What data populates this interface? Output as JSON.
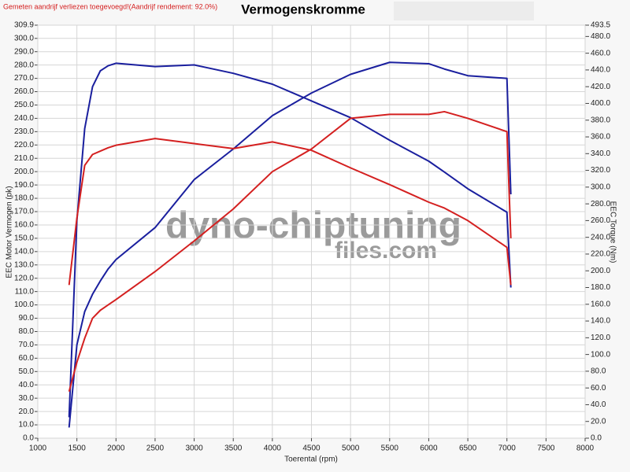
{
  "chart_data": {
    "type": "line",
    "title": "Vermogenskromme",
    "subtitle": "Gemeten aandrijf verliezen toegevoegd!(Aandrijf rendement: 92.0%)",
    "xlabel": "Toerental (rpm)",
    "ylabel": "EEC Motor Vermogen (pk)",
    "y2label": "EEC Torque (Nm)",
    "watermark": [
      "dyno-chiptuning",
      "files.com"
    ],
    "grid": true,
    "xlim": [
      1000,
      8000
    ],
    "xticks": [
      1000,
      1500,
      2000,
      2500,
      3000,
      3500,
      4000,
      4500,
      5000,
      5500,
      6000,
      6500,
      7000,
      7500,
      8000
    ],
    "ylim": [
      0,
      309.9
    ],
    "yticks": [
      {
        "value": 0,
        "label": "0.0"
      },
      {
        "value": 10,
        "label": "10.0"
      },
      {
        "value": 20,
        "label": "20.0"
      },
      {
        "value": 30,
        "label": "30.0"
      },
      {
        "value": 40,
        "label": "40.0"
      },
      {
        "value": 50,
        "label": "50.0"
      },
      {
        "value": 60,
        "label": "60.0"
      },
      {
        "value": 70,
        "label": "70.0"
      },
      {
        "value": 80,
        "label": "80.0"
      },
      {
        "value": 90,
        "label": "90.0"
      },
      {
        "value": 100,
        "label": "100.0"
      },
      {
        "value": 110,
        "label": "110.0"
      },
      {
        "value": 120,
        "label": "120.0"
      },
      {
        "value": 130,
        "label": "130.0"
      },
      {
        "value": 140,
        "label": "140.0"
      },
      {
        "value": 150,
        "label": "150.0"
      },
      {
        "value": 160,
        "label": "160.0"
      },
      {
        "value": 170,
        "label": "170.0"
      },
      {
        "value": 180,
        "label": "180.0"
      },
      {
        "value": 190,
        "label": "190.0"
      },
      {
        "value": 200,
        "label": "200.0"
      },
      {
        "value": 210,
        "label": "210.0"
      },
      {
        "value": 220,
        "label": "220.0"
      },
      {
        "value": 230,
        "label": "230.0"
      },
      {
        "value": 240,
        "label": "240.0"
      },
      {
        "value": 250,
        "label": "250.0"
      },
      {
        "value": 260,
        "label": "260.0"
      },
      {
        "value": 270,
        "label": "270.0"
      },
      {
        "value": 280,
        "label": "280.0"
      },
      {
        "value": 290,
        "label": "290.0"
      },
      {
        "value": 300,
        "label": "300.0"
      },
      309.9
    ],
    "y2lim": [
      0,
      493.5
    ],
    "y2ticks": [
      {
        "value": 0,
        "label": "0.0"
      },
      {
        "value": 20,
        "label": "20.0"
      },
      {
        "value": 40,
        "label": "40.0"
      },
      {
        "value": 60,
        "label": "60.0"
      },
      {
        "value": 80,
        "label": "80.0"
      },
      {
        "value": 100,
        "label": "100.0"
      },
      {
        "value": 120,
        "label": "120.0"
      },
      {
        "value": 140,
        "label": "140.0"
      },
      {
        "value": 160,
        "label": "160.0"
      },
      {
        "value": 180,
        "label": "180.0"
      },
      {
        "value": 200,
        "label": "200.0"
      },
      {
        "value": 220,
        "label": "220.0"
      },
      {
        "value": 240,
        "label": "240.0"
      },
      {
        "value": 260,
        "label": "260.0"
      },
      {
        "value": 280,
        "label": "280.0"
      },
      {
        "value": 300,
        "label": "300.0"
      },
      {
        "value": 320,
        "label": "320.0"
      },
      {
        "value": 340,
        "label": "340.0"
      },
      {
        "value": 360,
        "label": "360.0"
      },
      {
        "value": 380,
        "label": "380.0"
      },
      {
        "value": 400,
        "label": "400.0"
      },
      {
        "value": 420,
        "label": "420.0"
      },
      {
        "value": 440,
        "label": "440.0"
      },
      {
        "value": 460,
        "label": "460.0"
      },
      {
        "value": 480,
        "label": "480.0"
      },
      493.5
    ],
    "x": [
      1400,
      1500,
      1600,
      1700,
      1800,
      1900,
      2000,
      2500,
      3000,
      3500,
      4000,
      4500,
      5000,
      5500,
      6000,
      6200,
      6500,
      7000,
      7050
    ],
    "series": [
      {
        "color": "#1a1f9e",
        "values": [
          8,
          70,
          95,
          108,
          118,
          127,
          134,
          158,
          194,
          217,
          242,
          259,
          273,
          282,
          281,
          277,
          272,
          270,
          183
        ]
      },
      {
        "color": "#1a1f9e",
        "axis": "y2",
        "values": [
          25,
          260,
          370,
          420,
          439,
          445,
          448,
          444,
          446,
          436,
          423,
          403,
          383,
          356,
          331,
          318,
          298,
          270,
          180
        ]
      },
      {
        "color": "#d42020",
        "values": [
          35,
          57,
          75,
          90,
          96,
          100,
          104,
          125,
          148,
          172,
          200,
          217,
          240,
          243,
          243,
          245,
          240,
          230,
          150
        ]
      },
      {
        "color": "#d42020",
        "axis": "y2",
        "values": [
          183,
          263,
          326,
          339,
          343,
          347,
          350,
          358,
          352,
          346,
          354,
          344,
          323,
          303,
          282,
          275,
          260,
          228,
          183
        ]
      }
    ]
  }
}
